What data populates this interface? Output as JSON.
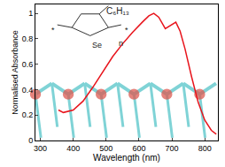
{
  "chart_data": {
    "type": "line",
    "x_label": "Wavelength (nm)",
    "y_label": "Normalised Absorbance",
    "x": [
      355,
      370,
      400,
      430,
      460,
      490,
      520,
      550,
      580,
      610,
      630,
      645,
      660,
      680,
      700,
      712,
      725,
      740,
      760,
      780,
      800,
      820,
      835
    ],
    "values": [
      0.24,
      0.22,
      0.24,
      0.31,
      0.42,
      0.54,
      0.66,
      0.76,
      0.85,
      0.93,
      0.98,
      1.0,
      0.97,
      0.88,
      0.91,
      0.93,
      0.86,
      0.72,
      0.5,
      0.3,
      0.16,
      0.08,
      0.05
    ],
    "color": "#e8141c",
    "xlim": [
      285,
      840
    ],
    "xticks": [
      300,
      400,
      500,
      600,
      700,
      800
    ],
    "ylim": [
      0,
      1.07
    ],
    "yticks": [
      0,
      0.2,
      0.4,
      0.6,
      0.8,
      1
    ],
    "grid": false,
    "annotations": [
      "C₆H₁₃",
      "Se",
      "n",
      "*",
      "*"
    ]
  }
}
